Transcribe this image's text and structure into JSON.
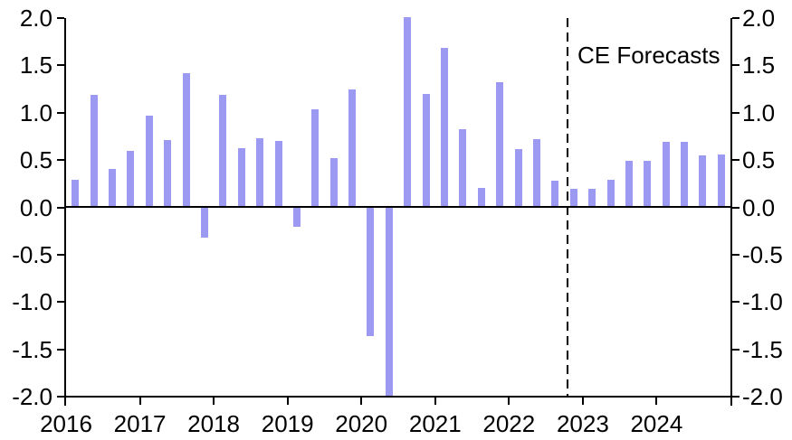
{
  "chart_data": {
    "type": "bar",
    "title": "",
    "x": [
      "2016 Q1",
      "2016 Q2",
      "2016 Q3",
      "2016 Q4",
      "2017 Q1",
      "2017 Q2",
      "2017 Q3",
      "2017 Q4",
      "2018 Q1",
      "2018 Q2",
      "2018 Q3",
      "2018 Q4",
      "2019 Q1",
      "2019 Q2",
      "2019 Q3",
      "2019 Q4",
      "2020 Q1",
      "2020 Q2",
      "2020 Q3",
      "2020 Q4",
      "2021 Q1",
      "2021 Q2",
      "2021 Q3",
      "2021 Q4",
      "2022 Q1",
      "2022 Q2",
      "2022 Q3",
      "2022 Q4",
      "2023 Q1",
      "2023 Q2",
      "2023 Q3",
      "2023 Q4",
      "2024 Q1",
      "2024 Q2",
      "2024 Q3",
      "2024 Q4"
    ],
    "values": [
      0.29,
      1.19,
      0.41,
      0.6,
      0.97,
      0.71,
      1.42,
      -0.32,
      1.19,
      0.63,
      0.73,
      0.7,
      -0.2,
      1.04,
      0.52,
      1.25,
      -1.36,
      -2.0,
      2.01,
      1.2,
      1.69,
      0.83,
      0.21,
      1.32,
      0.62,
      0.72,
      0.28,
      0.2,
      0.2,
      0.29,
      0.49,
      0.49,
      0.69,
      0.69,
      0.55,
      0.56
    ],
    "value_clipped_at_axis_min": "2020 Q2",
    "x_tick_labels": [
      "2016",
      "2017",
      "2018",
      "2019",
      "2020",
      "2021",
      "2022",
      "2023",
      "2024"
    ],
    "y_tick_labels_left": [
      "2.0",
      "1.5",
      "1.0",
      "0.5",
      "0.0",
      "-0.5",
      "-1.0",
      "-1.5",
      "-2.0"
    ],
    "y_tick_labels_right": [
      "2.0",
      "1.5",
      "1.0",
      "0.5",
      "0.0",
      "-0.5",
      "-1.0",
      "-1.5",
      "-2.0"
    ],
    "ylim": [
      -2.0,
      2.0
    ],
    "grid": false,
    "annotation": {
      "text": "CE Forecasts"
    },
    "forecast_divider": {
      "style": "dashed",
      "after_x": "2022 Q3"
    },
    "bar_color": "#9B99F2",
    "axis_color": "#000000"
  }
}
